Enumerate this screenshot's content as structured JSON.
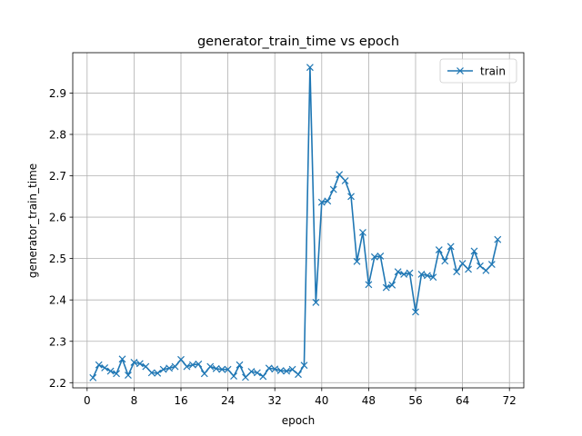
{
  "chart_data": {
    "type": "line",
    "title": "generator_train_time vs epoch",
    "xlabel": "epoch",
    "ylabel": "generator_train_time",
    "xlim": [
      -2.45,
      74.45
    ],
    "ylim": [
      2.1875,
      2.9975
    ],
    "xticks": [
      0,
      8,
      16,
      24,
      32,
      40,
      48,
      56,
      64,
      72
    ],
    "yticks": [
      2.2,
      2.3,
      2.4,
      2.5,
      2.6,
      2.7,
      2.8,
      2.9
    ],
    "grid": true,
    "legend": "top-right",
    "line_color": "#1f77b4",
    "series": [
      {
        "name": "train",
        "marker": "x",
        "x": [
          1,
          2,
          3,
          4,
          5,
          6,
          7,
          8,
          9,
          10,
          11,
          12,
          13,
          14,
          15,
          16,
          17,
          18,
          19,
          20,
          21,
          22,
          23,
          24,
          25,
          26,
          27,
          28,
          29,
          30,
          31,
          32,
          33,
          34,
          35,
          36,
          37,
          38,
          39,
          40,
          41,
          42,
          43,
          44,
          45,
          46,
          47,
          48,
          49,
          50,
          51,
          52,
          53,
          54,
          55,
          56,
          57,
          58,
          59,
          60,
          61,
          62,
          63,
          64,
          65,
          66,
          67,
          68,
          69,
          70
        ],
        "y": [
          2.212,
          2.243,
          2.236,
          2.228,
          2.222,
          2.257,
          2.218,
          2.249,
          2.246,
          2.239,
          2.224,
          2.223,
          2.232,
          2.235,
          2.239,
          2.256,
          2.239,
          2.243,
          2.245,
          2.222,
          2.239,
          2.234,
          2.232,
          2.232,
          2.216,
          2.243,
          2.213,
          2.227,
          2.224,
          2.215,
          2.235,
          2.233,
          2.229,
          2.228,
          2.232,
          2.22,
          2.242,
          2.962,
          2.394,
          2.636,
          2.639,
          2.667,
          2.703,
          2.688,
          2.65,
          2.493,
          2.563,
          2.437,
          2.504,
          2.506,
          2.43,
          2.436,
          2.468,
          2.462,
          2.465,
          2.371,
          2.462,
          2.459,
          2.455,
          2.521,
          2.494,
          2.529,
          2.468,
          2.488,
          2.474,
          2.518,
          2.482,
          2.471,
          2.486,
          2.546
        ]
      }
    ]
  }
}
